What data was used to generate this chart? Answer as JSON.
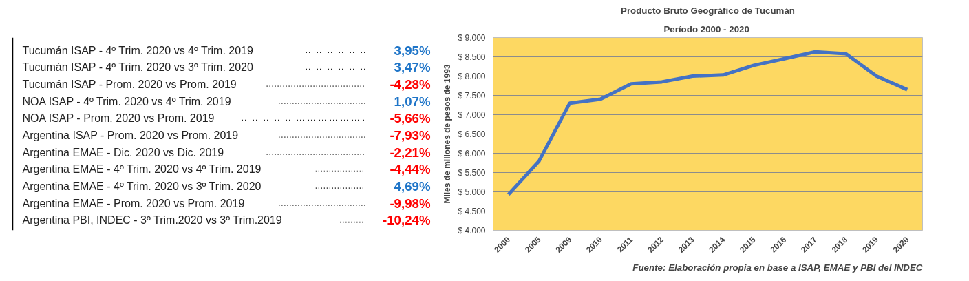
{
  "chart_data": [
    {
      "type": "other",
      "categories": [
        "Tucumán ISAP - 4º Trim. 2020 vs 4º Trim. 2019",
        "Tucumán ISAP - 4º Trim. 2020 vs 3º Trim. 2020",
        "Tucumán ISAP - Prom. 2020 vs Prom. 2019",
        "NOA ISAP - 4º Trim. 2020 vs 4º Trim. 2019",
        "NOA ISAP - Prom. 2020 vs Prom. 2019",
        "Argentina ISAP - Prom. 2020 vs Prom. 2019",
        "Argentina EMAE - Dic. 2020 vs Dic. 2019",
        "Argentina EMAE - 4º Trim. 2020 vs 4º Trim. 2019",
        "Argentina EMAE - 4º Trim. 2020 vs 3º Trim. 2020",
        "Argentina EMAE - Prom. 2020 vs Prom. 2019",
        "Argentina PBI, INDEC - 3º Trim.2020 vs 3º Trim.2019"
      ],
      "value_labels": [
        "3,95%",
        "3,47%",
        "-4,28%",
        "1,07%",
        "-5,66%",
        "-7,93%",
        "-2,21%",
        "-4,44%",
        "4,69%",
        "-9,98%",
        "-10,24%"
      ],
      "colors": [
        "#1f75c8",
        "#1f75c8",
        "#ff0000",
        "#1f75c8",
        "#ff0000",
        "#ff0000",
        "#ff0000",
        "#ff0000",
        "#1f75c8",
        "#ff0000",
        "#ff0000"
      ]
    },
    {
      "type": "line",
      "title": "Producto Bruto Geográfico de Tucumán",
      "subtitle": "Período 2000  - 2020",
      "ylabel": "Miles de millones de pesos de 1993",
      "annotations": [
        "Fuente: Elaboración propia en base a ISAP, EMAE y PBI del INDEC"
      ],
      "categories": [
        "2000",
        "2005",
        "2009",
        "2010",
        "2011",
        "2012",
        "2013",
        "2014",
        "2015",
        "2016",
        "2017",
        "2018",
        "2019",
        "2020"
      ],
      "series": [
        {
          "color": "#4472c4",
          "values": [
            4930,
            5800,
            7300,
            7400,
            7800,
            7850,
            8000,
            8030,
            8280,
            8450,
            8630,
            8580,
            8000,
            7650
          ]
        }
      ],
      "ylim": [
        4000,
        9000
      ],
      "yticks": [
        {
          "value": 4000,
          "label": "$ 4.000"
        },
        {
          "value": 4500,
          "label": "$ 4.500"
        },
        {
          "value": 5000,
          "label": "$ 5.000"
        },
        {
          "value": 5500,
          "label": "$ 5.500"
        },
        {
          "value": 6000,
          "label": "$ 6.000"
        },
        {
          "value": 6500,
          "label": "$ 6.500"
        },
        {
          "value": 7000,
          "label": "$ 7.000"
        },
        {
          "value": 7500,
          "label": "$ 7.500"
        },
        {
          "value": 8000,
          "label": "$ 8.000"
        },
        {
          "value": 8500,
          "label": "$ 8.500"
        },
        {
          "value": 9000,
          "label": "$ 9.000"
        }
      ],
      "grid": "y",
      "marker": "none",
      "line_style": "solid"
    }
  ]
}
